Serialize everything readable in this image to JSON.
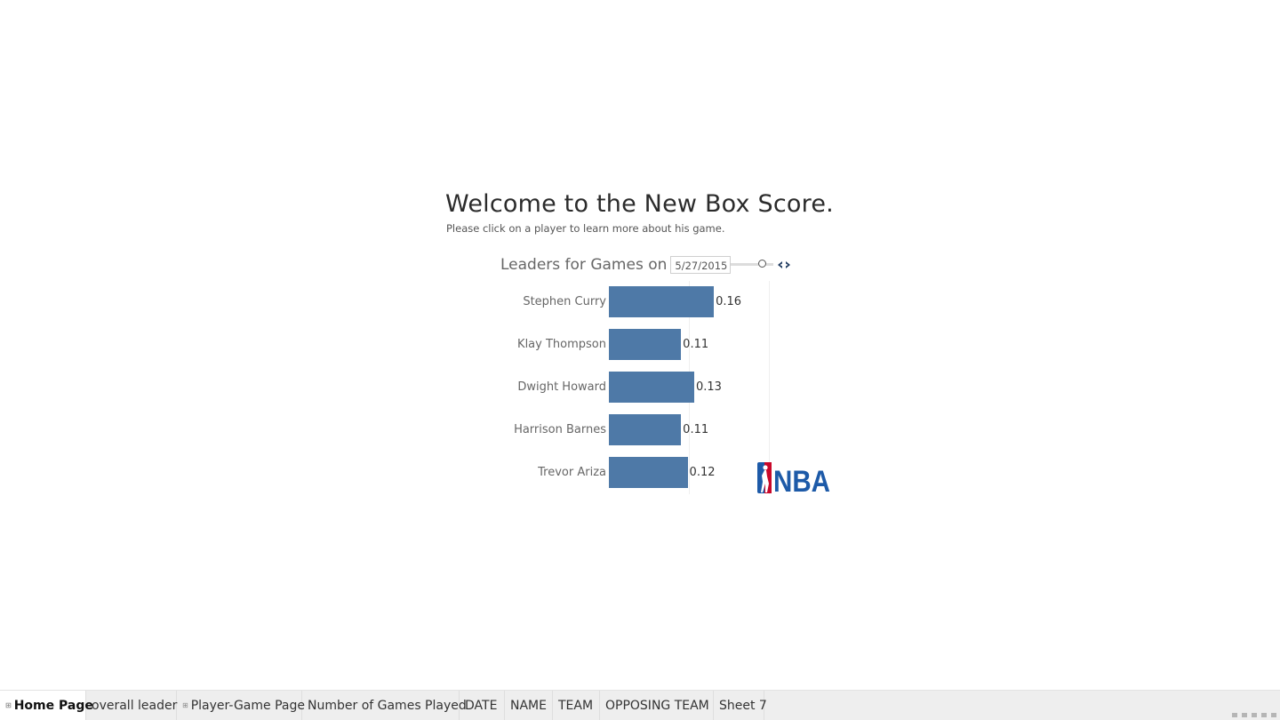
{
  "dashboard": {
    "title": "Welcome to the New Box Score.",
    "subtitle": "Please click on a player to learn more about his game.",
    "chart_header": "Leaders for Games on",
    "date_value": "5/27/2015",
    "logo_text": "NBA"
  },
  "chart_data": {
    "type": "bar",
    "orientation": "horizontal",
    "categories": [
      "Stephen Curry",
      "Klay Thompson",
      "Dwight Howard",
      "Harrison Barnes",
      "Trevor Ariza"
    ],
    "values": [
      0.16,
      0.11,
      0.13,
      0.11,
      0.12
    ],
    "value_labels": [
      "0.16",
      "0.11",
      "0.13",
      "0.11",
      "0.12"
    ],
    "xlim": [
      0,
      0.2
    ],
    "grid": true,
    "bar_color": "#4e79a7"
  },
  "tabs": [
    {
      "label": "Home Page",
      "active": true,
      "icon": "dashboard-icon"
    },
    {
      "label": "overall leader",
      "active": false,
      "icon": ""
    },
    {
      "label": "Player-Game Page",
      "active": false,
      "icon": "dashboard-icon"
    },
    {
      "label": "Number of Games Played",
      "active": false,
      "icon": ""
    },
    {
      "label": "DATE",
      "active": false,
      "icon": ""
    },
    {
      "label": "NAME",
      "active": false,
      "icon": ""
    },
    {
      "label": "TEAM",
      "active": false,
      "icon": ""
    },
    {
      "label": "OPPOSING TEAM",
      "active": false,
      "icon": ""
    },
    {
      "label": "Sheet 7",
      "active": false,
      "icon": ""
    }
  ],
  "colors": {
    "bar": "#4e79a7",
    "logo_blue": "#1d5aa8",
    "logo_red": "#c9082a",
    "tab_bg": "#eeeeee"
  }
}
